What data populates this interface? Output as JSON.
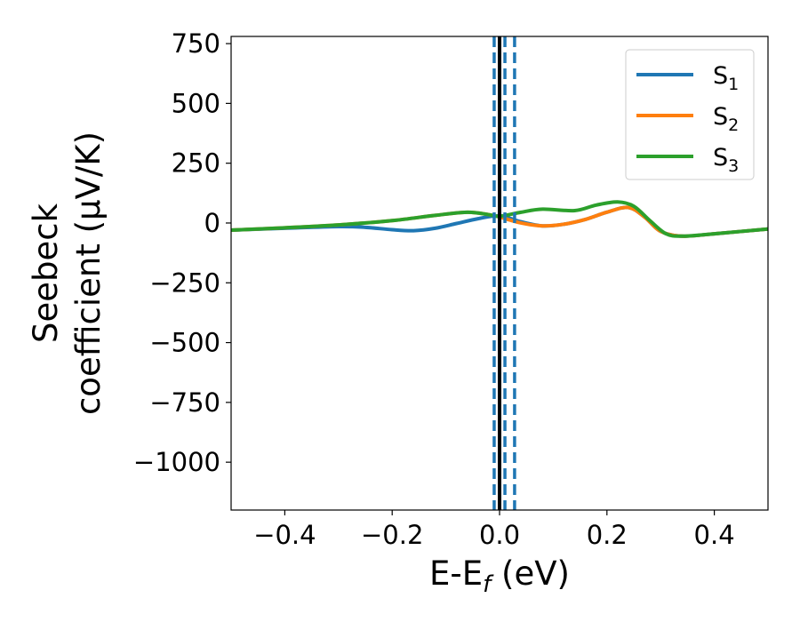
{
  "chart_data": {
    "type": "line",
    "title": "",
    "xlabel": "E-E",
    "xlabel_sub": "f",
    "xlabel_unit": " (eV)",
    "ylabel_line1": "Seebeck",
    "ylabel_line2": "coefficient  (μV/K)",
    "xlim": [
      -0.5,
      0.5
    ],
    "ylim": [
      -1200,
      780
    ],
    "xticks": [
      -0.4,
      -0.2,
      0.0,
      0.2,
      0.4
    ],
    "xtick_labels": [
      "−0.4",
      "−0.2",
      "0.0",
      "0.2",
      "0.4"
    ],
    "yticks": [
      750,
      500,
      250,
      0,
      -250,
      -500,
      -750,
      -1000
    ],
    "ytick_labels": [
      "750",
      "500",
      "250",
      "0",
      "−250",
      "−500",
      "−750",
      "−1000"
    ],
    "legend_position": "top-right",
    "grid": false,
    "vlines": [
      {
        "x": 0.0,
        "style": "solid",
        "color": "#000000"
      },
      {
        "x": -0.01,
        "style": "dashed",
        "color": "#1f77b4"
      },
      {
        "x": 0.01,
        "style": "dashed",
        "color": "#1f77b4"
      },
      {
        "x": 0.028,
        "style": "dashed",
        "color": "#1f77b4"
      }
    ],
    "series": [
      {
        "name": "S",
        "sub": "1",
        "color": "#1f77b4",
        "x": [
          -0.5,
          -0.4,
          -0.3,
          -0.25,
          -0.2,
          -0.16,
          -0.12,
          -0.08,
          -0.04,
          0.0,
          0.04,
          0.08,
          0.12,
          0.16,
          0.2,
          0.24,
          0.27,
          0.3,
          0.34,
          0.4,
          0.5
        ],
        "y": [
          -30,
          -22,
          -15,
          -18,
          -28,
          -32,
          -22,
          -2,
          18,
          30,
          5,
          -12,
          -5,
          15,
          45,
          65,
          25,
          -35,
          -55,
          -45,
          -25
        ]
      },
      {
        "name": "S",
        "sub": "2",
        "color": "#ff7f0e",
        "x": [
          -0.5,
          -0.4,
          -0.3,
          -0.2,
          -0.12,
          -0.06,
          -0.02,
          0.0,
          0.04,
          0.08,
          0.12,
          0.16,
          0.2,
          0.24,
          0.27,
          0.3,
          0.34,
          0.4,
          0.5
        ],
        "y": [
          -30,
          -20,
          -8,
          10,
          32,
          45,
          35,
          25,
          0,
          -12,
          -5,
          15,
          45,
          65,
          25,
          -35,
          -55,
          -45,
          -25
        ]
      },
      {
        "name": "S",
        "sub": "3",
        "color": "#2ca02c",
        "x": [
          -0.5,
          -0.4,
          -0.3,
          -0.2,
          -0.12,
          -0.06,
          -0.02,
          0.0,
          0.04,
          0.08,
          0.14,
          0.18,
          0.22,
          0.25,
          0.28,
          0.31,
          0.34,
          0.4,
          0.5
        ],
        "y": [
          -30,
          -20,
          -8,
          10,
          32,
          45,
          35,
          28,
          45,
          58,
          52,
          75,
          88,
          70,
          10,
          -45,
          -55,
          -45,
          -25
        ]
      }
    ]
  }
}
